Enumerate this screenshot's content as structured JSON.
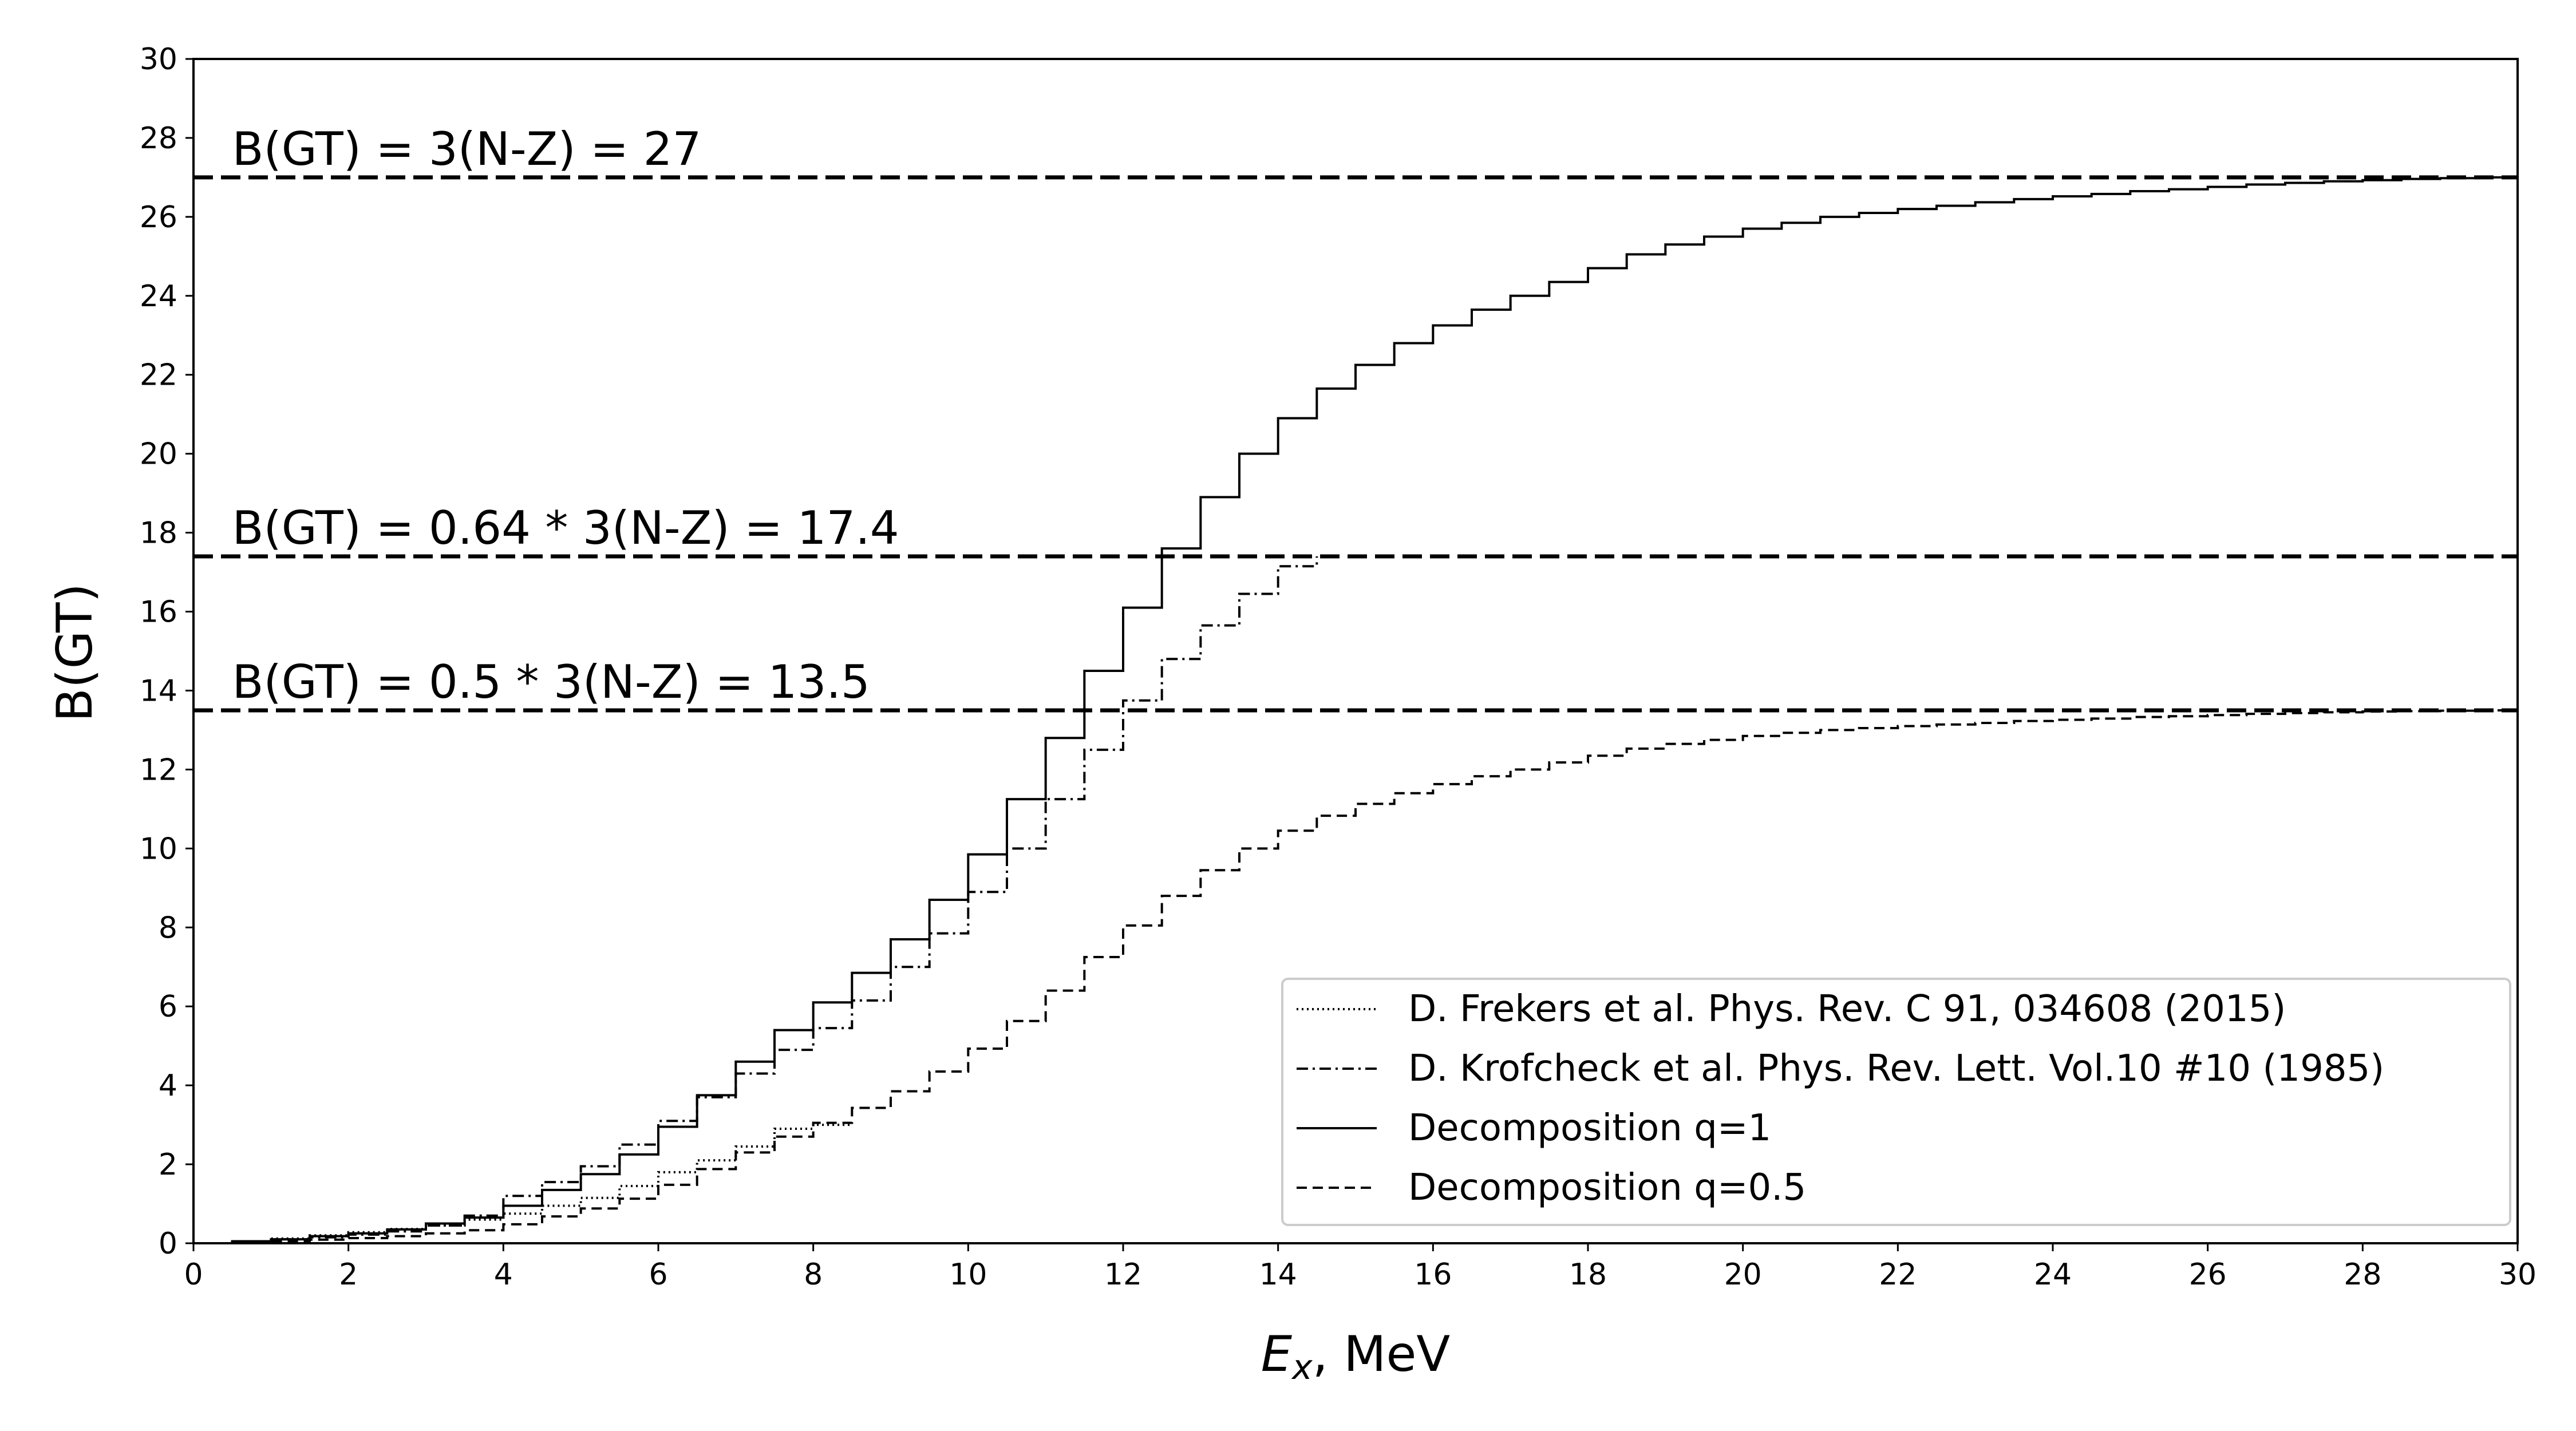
{
  "chart_data": {
    "type": "line",
    "x_axis": {
      "label_symbol": "E",
      "label_subscript": "x",
      "label_suffix": ", MeV",
      "lim": [
        0,
        30
      ],
      "ticks": [
        "0",
        "2",
        "4",
        "6",
        "8",
        "10",
        "12",
        "14",
        "16",
        "18",
        "20",
        "22",
        "24",
        "26",
        "28",
        "30"
      ]
    },
    "y_axis": {
      "label": "B(GT)",
      "lim": [
        0,
        30
      ],
      "ticks": [
        "0",
        "2",
        "4",
        "6",
        "8",
        "10",
        "12",
        "14",
        "16",
        "18",
        "20",
        "22",
        "24",
        "26",
        "28",
        "30"
      ]
    },
    "grid": false,
    "legend_position": "lower-right",
    "reference_lines": [
      {
        "y": 27,
        "label": "B(GT) = 3(N-Z) = 27"
      },
      {
        "y": 17.4,
        "label": "B(GT) = 0.64 * 3(N-Z) = 17.4"
      },
      {
        "y": 13.5,
        "label": "B(GT) = 0.5 * 3(N-Z) = 13.5"
      }
    ],
    "series": [
      {
        "name": "D. Frekers et al. Phys. Rev. C 91, 034608 (2015)",
        "style": "dotted",
        "drawstyle": "steps",
        "x": [
          0,
          0.5,
          1,
          1.5,
          2,
          2.5,
          3,
          3.5,
          4,
          4.5,
          5,
          5.5,
          6,
          6.5,
          7,
          7.5,
          8,
          8.5
        ],
        "y": [
          0,
          0.05,
          0.12,
          0.2,
          0.28,
          0.36,
          0.45,
          0.6,
          0.75,
          0.95,
          1.15,
          1.45,
          1.8,
          2.1,
          2.45,
          2.9,
          3.0,
          3.0
        ]
      },
      {
        "name": "D. Krofcheck et al. Phys. Rev. Lett. Vol.10 #10 (1985)",
        "style": "dashdot",
        "drawstyle": "steps",
        "x": [
          0,
          0.5,
          1,
          1.5,
          2,
          2.5,
          3,
          3.5,
          4,
          4.5,
          5,
          5.5,
          6,
          6.5,
          7,
          7.5,
          8,
          8.5,
          9,
          9.5,
          10,
          10.5,
          11,
          11.5,
          12,
          12.5,
          13,
          13.5,
          14,
          14.5
        ],
        "y": [
          0,
          0.05,
          0.1,
          0.15,
          0.22,
          0.3,
          0.45,
          0.7,
          1.2,
          1.55,
          1.95,
          2.5,
          3.1,
          3.7,
          4.3,
          4.9,
          5.45,
          6.15,
          7.0,
          7.85,
          8.9,
          10.0,
          11.25,
          12.5,
          13.75,
          14.8,
          15.65,
          16.45,
          17.15,
          17.4
        ]
      },
      {
        "name": "Decomposition q=1",
        "style": "solid",
        "drawstyle": "steps",
        "x": [
          0,
          0.5,
          1,
          1.5,
          2,
          2.5,
          3,
          3.5,
          4,
          4.5,
          5,
          5.5,
          6,
          6.5,
          7,
          7.5,
          8,
          8.5,
          9,
          9.5,
          10,
          10.5,
          11,
          11.5,
          12,
          12.5,
          13,
          13.5,
          14,
          14.5,
          15,
          15.5,
          16,
          16.5,
          17,
          17.5,
          18,
          18.5,
          19,
          19.5,
          20,
          20.5,
          21,
          21.5,
          22,
          22.5,
          23,
          23.5,
          24,
          24.5,
          25,
          25.5,
          26,
          26.5,
          27,
          27.5,
          28,
          28.5,
          29,
          29.5,
          30
        ],
        "y": [
          0,
          0.05,
          0.1,
          0.18,
          0.25,
          0.35,
          0.5,
          0.65,
          0.95,
          1.35,
          1.75,
          2.25,
          2.95,
          3.75,
          4.6,
          5.4,
          6.1,
          6.85,
          7.7,
          8.7,
          9.85,
          11.25,
          12.8,
          14.5,
          16.1,
          17.6,
          18.9,
          20.0,
          20.9,
          21.65,
          22.25,
          22.8,
          23.25,
          23.65,
          24.0,
          24.35,
          24.7,
          25.05,
          25.3,
          25.5,
          25.7,
          25.85,
          26.0,
          26.1,
          26.2,
          26.28,
          26.37,
          26.45,
          26.52,
          26.58,
          26.65,
          26.7,
          26.76,
          26.82,
          26.86,
          26.9,
          26.93,
          26.96,
          26.98,
          27.0,
          27.0
        ]
      },
      {
        "name": "Decomposition q=0.5",
        "style": "dashed",
        "drawstyle": "steps",
        "x": [
          0,
          0.5,
          1,
          1.5,
          2,
          2.5,
          3,
          3.5,
          4,
          4.5,
          5,
          5.5,
          6,
          6.5,
          7,
          7.5,
          8,
          8.5,
          9,
          9.5,
          10,
          10.5,
          11,
          11.5,
          12,
          12.5,
          13,
          13.5,
          14,
          14.5,
          15,
          15.5,
          16,
          16.5,
          17,
          17.5,
          18,
          18.5,
          19,
          19.5,
          20,
          20.5,
          21,
          21.5,
          22,
          22.5,
          23,
          23.5,
          24,
          24.5,
          25,
          25.5,
          26,
          26.5,
          27,
          27.5,
          28,
          28.5,
          29,
          29.5,
          30
        ],
        "y": [
          0,
          0.03,
          0.05,
          0.09,
          0.13,
          0.18,
          0.25,
          0.33,
          0.48,
          0.68,
          0.88,
          1.13,
          1.48,
          1.88,
          2.3,
          2.7,
          3.05,
          3.43,
          3.85,
          4.35,
          4.93,
          5.63,
          6.4,
          7.25,
          8.05,
          8.8,
          9.45,
          10.0,
          10.45,
          10.83,
          11.13,
          11.4,
          11.63,
          11.83,
          12.0,
          12.18,
          12.35,
          12.53,
          12.65,
          12.75,
          12.85,
          12.93,
          13.0,
          13.05,
          13.1,
          13.14,
          13.18,
          13.23,
          13.26,
          13.29,
          13.33,
          13.35,
          13.38,
          13.41,
          13.43,
          13.45,
          13.47,
          13.48,
          13.49,
          13.5,
          13.5
        ]
      }
    ]
  }
}
